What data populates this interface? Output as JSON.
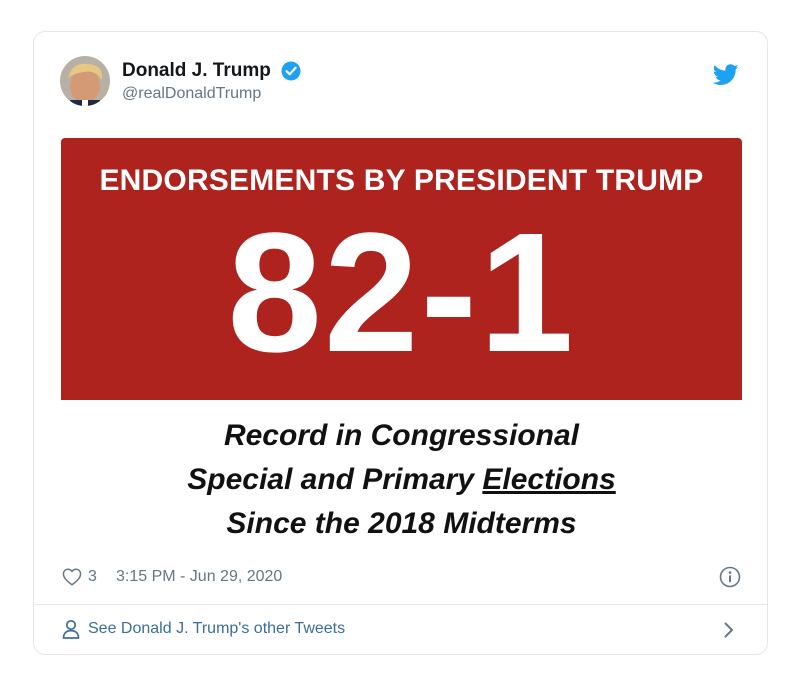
{
  "tweet": {
    "display_name": "Donald J. Trump",
    "handle": "@realDonaldTrump",
    "verified": true,
    "like_count": "3",
    "timestamp": "3:15 PM - Jun 29, 2020"
  },
  "media": {
    "banner_title": "ENDORSEMENTS BY PRESIDENT TRUMP",
    "score": "82-1",
    "caption_line1": "Record in Congressional",
    "caption_line2_pre": "Special and Primary ",
    "caption_line2_underlined": "Elections",
    "caption_line3": "Since the 2018 Midterms"
  },
  "footer": {
    "link_text": "See Donald J. Trump's other Tweets"
  },
  "colors": {
    "banner_red": "#ae231d",
    "twitter_blue": "#1da1f2",
    "link_blue": "#3b6e99"
  },
  "icons": [
    "verified-badge-icon",
    "twitter-bird-icon",
    "heart-icon",
    "info-icon",
    "person-icon",
    "chevron-right-icon"
  ]
}
